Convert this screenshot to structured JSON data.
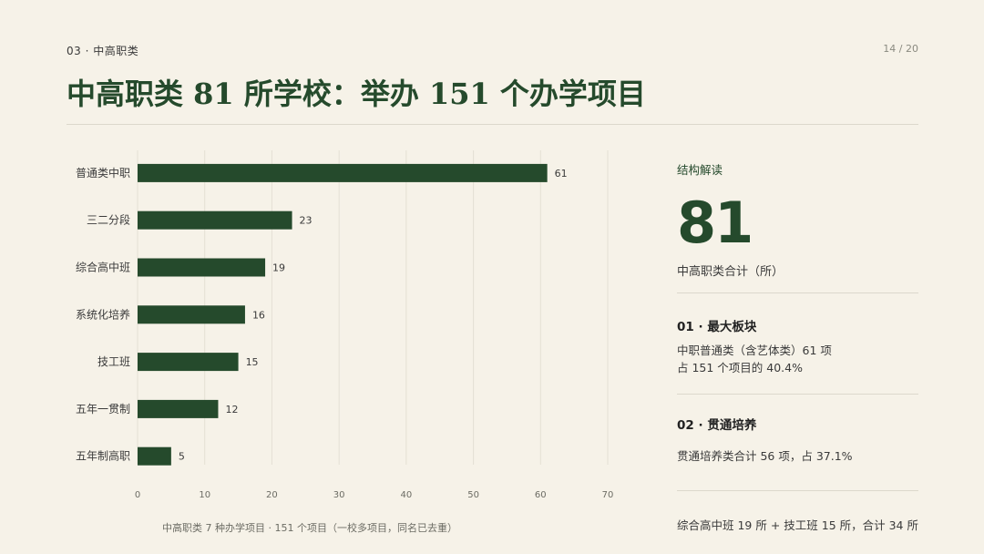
{
  "header": {
    "section_label": "03 · 中高职类",
    "page_number": "14 / 20",
    "title": "中高职类 81 所学校：举办 151 个办学项目"
  },
  "chart_caption": "中高职类 7 种办学项目 · 151 个项目（一校多项目，同名已去重）",
  "chart_data": {
    "type": "bar",
    "orientation": "horizontal",
    "categories": [
      "普通类中职",
      "三二分段",
      "综合高中班",
      "系统化培养",
      "技工班",
      "五年一贯制",
      "五年制高职"
    ],
    "values": [
      61,
      23,
      19,
      16,
      15,
      12,
      5
    ],
    "xlim": [
      0,
      70
    ],
    "xticks": [
      0,
      10,
      20,
      30,
      40,
      50,
      60,
      70
    ],
    "grid": true,
    "data_labels": true,
    "bar_color": "#254a2c"
  },
  "panel": {
    "label": "结构解读",
    "big_number": "81",
    "big_caption": "中高职类合计（所）",
    "points": [
      {
        "head": "01 · 最大板块",
        "lines": [
          "中职普通类（含艺体类）61 项",
          "占 151 个项目的 40.4%"
        ]
      },
      {
        "head": "02 · 贯通培养",
        "lines": [
          "贯通培养类合计 56 项，占 37.1%"
        ]
      }
    ],
    "summary": "综合高中班 19 所 + 技工班 15 所，合计 34 所"
  },
  "colors": {
    "background": "#f6f2e8",
    "accent": "#254a2c",
    "rule": "#dcd8cc"
  }
}
